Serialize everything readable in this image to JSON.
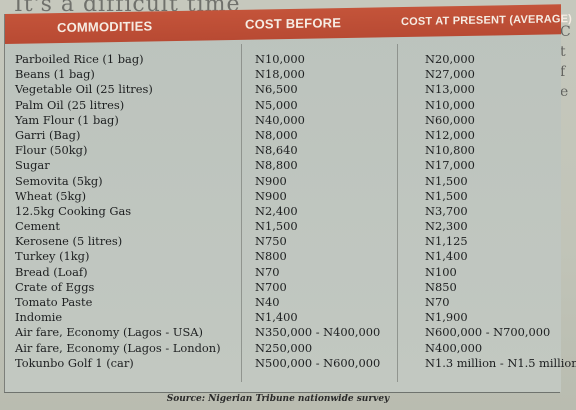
{
  "headers": {
    "commodities": "COMMODITIES",
    "cost_before": "COST BEFORE",
    "cost_present": "COST AT PRESENT (AVERAGE)"
  },
  "rows": [
    {
      "name": "Parboiled Rice (1 bag)",
      "before": "N10,000",
      "present": "N20,000"
    },
    {
      "name": "Beans (1 bag)",
      "before": "N18,000",
      "present": "N27,000"
    },
    {
      "name": "Vegetable Oil (25 litres)",
      "before": "N6,500",
      "present": "N13,000"
    },
    {
      "name": "Palm Oil (25 litres)",
      "before": "N5,000",
      "present": "N10,000"
    },
    {
      "name": "Yam Flour (1 bag)",
      "before": "N40,000",
      "present": "N60,000"
    },
    {
      "name": "Garri (Bag)",
      "before": "N8,000",
      "present": "N12,000"
    },
    {
      "name": "Flour (50kg)",
      "before": "N8,640",
      "present": "N10,800"
    },
    {
      "name": "Sugar",
      "before": "N8,800",
      "present": "N17,000"
    },
    {
      "name": "Semovita (5kg)",
      "before": "N900",
      "present": "N1,500"
    },
    {
      "name": "Wheat (5kg)",
      "before": "N900",
      "present": "N1,500"
    },
    {
      "name": "12.5kg Cooking Gas",
      "before": "N2,400",
      "present": "N3,700"
    },
    {
      "name": "Cement",
      "before": "N1,500",
      "present": "N2,300"
    },
    {
      "name": "Kerosene (5 litres)",
      "before": "N750",
      "present": "N1,125"
    },
    {
      "name": "Turkey (1kg)",
      "before": "N800",
      "present": "N1,400"
    },
    {
      "name": "Bread (Loaf)",
      "before": "N70",
      "present": "N100"
    },
    {
      "name": "Crate of Eggs",
      "before": "N700",
      "present": "N850"
    },
    {
      "name": "Tomato Paste",
      "before": "N40",
      "present": "N70"
    },
    {
      "name": "Indomie",
      "before": "N1,400",
      "present": "N1,900"
    },
    {
      "name": "Air fare, Economy (Lagos - USA)",
      "before": "N350,000 - N400,000",
      "present": "N600,000 - N700,000"
    },
    {
      "name": "Air fare, Economy (Lagos - London)",
      "before": "N250,000",
      "present": "N400,000"
    },
    {
      "name": "Tokunbo Golf 1 (car)",
      "before": "N500,000 - N600,000",
      "present": "N1.3 million - N1.5 million"
    }
  ],
  "source": "Source: Nigerian Tribune nationwide survey",
  "headline_fragment": "It's a difficult time",
  "side_letters": [
    "C",
    "t",
    "f",
    "e"
  ]
}
